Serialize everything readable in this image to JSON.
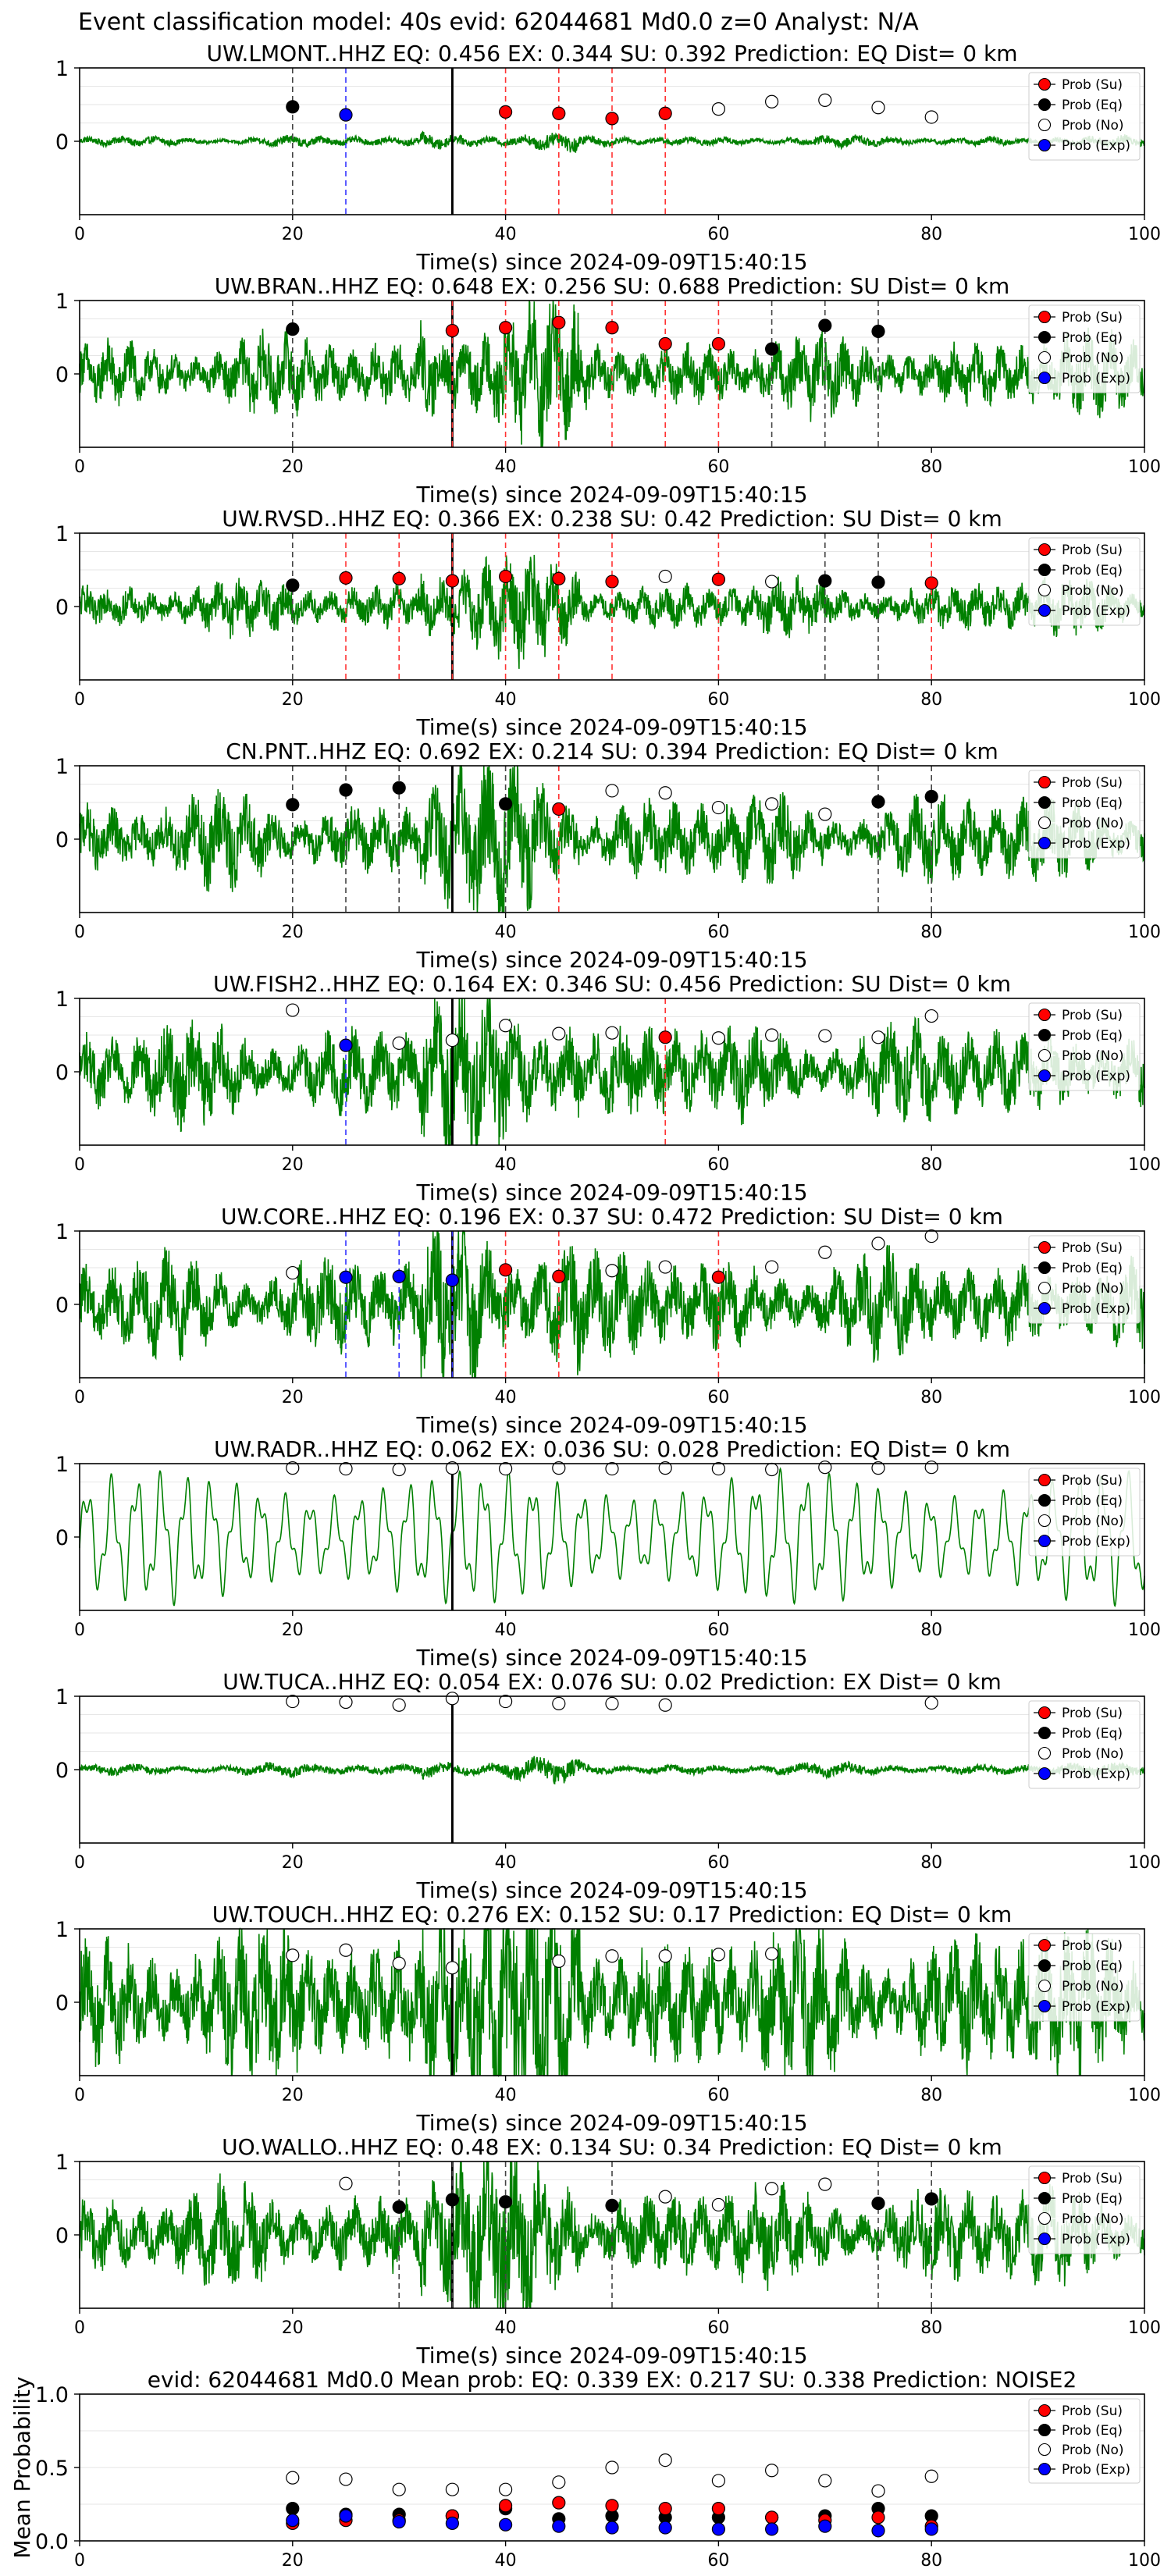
{
  "suptitle": "Event classification model: 40s evid: 62044681 Md0.0 z=0 Analyst: N/A",
  "colors": {
    "waveform": "#008000",
    "su": "#ff0000",
    "eq": "#000000",
    "exp": "#0000ff",
    "no_fill": "#ffffff",
    "marker_line": "#000000"
  },
  "legend": [
    {
      "key": "su",
      "label": "Prob (Su)"
    },
    {
      "key": "eq",
      "label": "Prob (Eq)"
    },
    {
      "key": "no",
      "label": "Prob (No)"
    },
    {
      "key": "exp",
      "label": "Prob (Exp)"
    }
  ],
  "chart_data": [
    {
      "type": "scatter",
      "station": "UW.LMONT..HHZ",
      "title": "UW.LMONT..HHZ   EQ: 0.456  EX: 0.344  SU: 0.392   Prediction: EQ    Dist= 0 km",
      "xlabel": "Time(s) since 2024-09-09T15:40:15",
      "xlim": [
        0,
        100
      ],
      "ylim": [
        -1,
        1
      ],
      "xticks": [
        "0",
        "20",
        "40",
        "60",
        "80",
        "100"
      ],
      "yticks": [
        "0",
        "1"
      ],
      "origin_time": 35,
      "waveform": {
        "amp": 0.05,
        "freq": 40
      },
      "points": [
        {
          "t": 20,
          "p": 0.47,
          "cls": "eq"
        },
        {
          "t": 25,
          "p": 0.36,
          "cls": "exp"
        },
        {
          "t": 40,
          "p": 0.4,
          "cls": "su"
        },
        {
          "t": 45,
          "p": 0.38,
          "cls": "su"
        },
        {
          "t": 50,
          "p": 0.31,
          "cls": "su"
        },
        {
          "t": 55,
          "p": 0.38,
          "cls": "su"
        },
        {
          "t": 60,
          "p": 0.44,
          "cls": "no"
        },
        {
          "t": 65,
          "p": 0.54,
          "cls": "no"
        },
        {
          "t": 70,
          "p": 0.56,
          "cls": "no"
        },
        {
          "t": 75,
          "p": 0.46,
          "cls": "no"
        },
        {
          "t": 80,
          "p": 0.33,
          "cls": "no"
        }
      ]
    },
    {
      "type": "scatter",
      "station": "UW.BRAN..HHZ",
      "title": "UW.BRAN..HHZ   EQ: 0.648  EX: 0.256  SU: 0.688   Prediction: SU    Dist= 0 km",
      "xlabel": "Time(s) since 2024-09-09T15:40:15",
      "xlim": [
        0,
        100
      ],
      "ylim": [
        -1,
        1
      ],
      "xticks": [
        "0",
        "20",
        "40",
        "60",
        "80",
        "100"
      ],
      "yticks": [
        "0",
        "1"
      ],
      "origin_time": 35,
      "waveform": {
        "amp": 0.35,
        "freq": 60
      },
      "points": [
        {
          "t": 20,
          "p": 0.61,
          "cls": "eq"
        },
        {
          "t": 35,
          "p": 0.59,
          "cls": "su"
        },
        {
          "t": 40,
          "p": 0.63,
          "cls": "su"
        },
        {
          "t": 45,
          "p": 0.7,
          "cls": "su"
        },
        {
          "t": 50,
          "p": 0.63,
          "cls": "su"
        },
        {
          "t": 55,
          "p": 0.41,
          "cls": "su"
        },
        {
          "t": 60,
          "p": 0.41,
          "cls": "su"
        },
        {
          "t": 65,
          "p": 0.34,
          "cls": "eq"
        },
        {
          "t": 70,
          "p": 0.66,
          "cls": "eq"
        },
        {
          "t": 75,
          "p": 0.58,
          "cls": "eq"
        }
      ]
    },
    {
      "type": "scatter",
      "station": "UW.RVSD..HHZ",
      "title": "UW.RVSD..HHZ   EQ: 0.366  EX: 0.238  SU: 0.42   Prediction: SU    Dist= 0 km",
      "xlabel": "Time(s) since 2024-09-09T15:40:15",
      "xlim": [
        0,
        100
      ],
      "ylim": [
        -1,
        1
      ],
      "xticks": [
        "0",
        "20",
        "40",
        "60",
        "80",
        "100"
      ],
      "yticks": [
        "0",
        "1"
      ],
      "origin_time": 35,
      "waveform": {
        "amp": 0.25,
        "freq": 60
      },
      "points": [
        {
          "t": 20,
          "p": 0.29,
          "cls": "eq"
        },
        {
          "t": 25,
          "p": 0.39,
          "cls": "su"
        },
        {
          "t": 30,
          "p": 0.38,
          "cls": "su"
        },
        {
          "t": 35,
          "p": 0.35,
          "cls": "su"
        },
        {
          "t": 40,
          "p": 0.41,
          "cls": "su"
        },
        {
          "t": 45,
          "p": 0.38,
          "cls": "su"
        },
        {
          "t": 50,
          "p": 0.34,
          "cls": "su"
        },
        {
          "t": 55,
          "p": 0.41,
          "cls": "no"
        },
        {
          "t": 60,
          "p": 0.37,
          "cls": "su"
        },
        {
          "t": 65,
          "p": 0.34,
          "cls": "no"
        },
        {
          "t": 70,
          "p": 0.35,
          "cls": "eq"
        },
        {
          "t": 75,
          "p": 0.33,
          "cls": "eq"
        },
        {
          "t": 80,
          "p": 0.32,
          "cls": "su"
        }
      ]
    },
    {
      "type": "scatter",
      "station": "CN.PNT..HHZ",
      "title": "CN.PNT..HHZ   EQ: 0.692  EX: 0.214  SU: 0.394   Prediction: EQ    Dist= 0 km",
      "xlabel": "Time(s) since 2024-09-09T15:40:15",
      "xlim": [
        0,
        100
      ],
      "ylim": [
        -1,
        1
      ],
      "xticks": [
        "0",
        "20",
        "40",
        "60",
        "80",
        "100"
      ],
      "yticks": [
        "0",
        "1"
      ],
      "origin_time": 35,
      "waveform": {
        "amp": 0.4,
        "freq": 50
      },
      "points": [
        {
          "t": 20,
          "p": 0.47,
          "cls": "eq"
        },
        {
          "t": 25,
          "p": 0.67,
          "cls": "eq"
        },
        {
          "t": 30,
          "p": 0.7,
          "cls": "eq"
        },
        {
          "t": 40,
          "p": 0.48,
          "cls": "eq"
        },
        {
          "t": 45,
          "p": 0.41,
          "cls": "su"
        },
        {
          "t": 50,
          "p": 0.66,
          "cls": "no"
        },
        {
          "t": 55,
          "p": 0.63,
          "cls": "no"
        },
        {
          "t": 60,
          "p": 0.43,
          "cls": "no"
        },
        {
          "t": 65,
          "p": 0.48,
          "cls": "no"
        },
        {
          "t": 70,
          "p": 0.34,
          "cls": "no"
        },
        {
          "t": 75,
          "p": 0.51,
          "cls": "eq"
        },
        {
          "t": 80,
          "p": 0.58,
          "cls": "eq"
        }
      ]
    },
    {
      "type": "scatter",
      "station": "UW.FISH2..HHZ",
      "title": "UW.FISH2..HHZ   EQ: 0.164  EX: 0.346  SU: 0.456   Prediction: SU    Dist= 0 km",
      "xlabel": "Time(s) since 2024-09-09T15:40:15",
      "xlim": [
        0,
        100
      ],
      "ylim": [
        -1,
        1
      ],
      "xticks": [
        "0",
        "20",
        "40",
        "60",
        "80",
        "100"
      ],
      "yticks": [
        "0",
        "1"
      ],
      "origin_time": 35,
      "waveform": {
        "amp": 0.45,
        "freq": 50
      },
      "points": [
        {
          "t": 20,
          "p": 0.84,
          "cls": "no"
        },
        {
          "t": 25,
          "p": 0.36,
          "cls": "exp"
        },
        {
          "t": 30,
          "p": 0.39,
          "cls": "no"
        },
        {
          "t": 35,
          "p": 0.43,
          "cls": "no"
        },
        {
          "t": 40,
          "p": 0.63,
          "cls": "no"
        },
        {
          "t": 45,
          "p": 0.52,
          "cls": "no"
        },
        {
          "t": 50,
          "p": 0.53,
          "cls": "no"
        },
        {
          "t": 55,
          "p": 0.47,
          "cls": "su"
        },
        {
          "t": 60,
          "p": 0.46,
          "cls": "no"
        },
        {
          "t": 65,
          "p": 0.5,
          "cls": "no"
        },
        {
          "t": 70,
          "p": 0.49,
          "cls": "no"
        },
        {
          "t": 75,
          "p": 0.47,
          "cls": "no"
        },
        {
          "t": 80,
          "p": 0.76,
          "cls": "no"
        }
      ]
    },
    {
      "type": "scatter",
      "station": "UW.CORE..HHZ",
      "title": "UW.CORE..HHZ   EQ: 0.196  EX: 0.37  SU: 0.472   Prediction: SU    Dist= 0 km",
      "xlabel": "Time(s) since 2024-09-09T15:40:15",
      "xlim": [
        0,
        100
      ],
      "ylim": [
        -1,
        1
      ],
      "xticks": [
        "0",
        "20",
        "40",
        "60",
        "80",
        "100"
      ],
      "yticks": [
        "0",
        "1"
      ],
      "origin_time": 35,
      "waveform": {
        "amp": 0.45,
        "freq": 50
      },
      "points": [
        {
          "t": 20,
          "p": 0.43,
          "cls": "no"
        },
        {
          "t": 25,
          "p": 0.37,
          "cls": "exp"
        },
        {
          "t": 30,
          "p": 0.38,
          "cls": "exp"
        },
        {
          "t": 35,
          "p": 0.33,
          "cls": "exp"
        },
        {
          "t": 40,
          "p": 0.47,
          "cls": "su"
        },
        {
          "t": 45,
          "p": 0.38,
          "cls": "su"
        },
        {
          "t": 50,
          "p": 0.46,
          "cls": "no"
        },
        {
          "t": 55,
          "p": 0.51,
          "cls": "no"
        },
        {
          "t": 60,
          "p": 0.37,
          "cls": "su"
        },
        {
          "t": 65,
          "p": 0.51,
          "cls": "no"
        },
        {
          "t": 70,
          "p": 0.71,
          "cls": "no"
        },
        {
          "t": 75,
          "p": 0.83,
          "cls": "no"
        },
        {
          "t": 80,
          "p": 0.93,
          "cls": "no"
        }
      ]
    },
    {
      "type": "scatter",
      "station": "UW.RADR..HHZ",
      "title": "UW.RADR..HHZ   EQ: 0.062  EX: 0.036  SU: 0.028   Prediction: EQ    Dist= 0 km",
      "xlabel": "Time(s) since 2024-09-09T15:40:15",
      "xlim": [
        0,
        100
      ],
      "ylim": [
        -1,
        1
      ],
      "xticks": [
        "0",
        "20",
        "40",
        "60",
        "80",
        "100"
      ],
      "yticks": [
        "0",
        "1"
      ],
      "origin_time": 35,
      "waveform": {
        "amp": 0.9,
        "freq": 3
      },
      "points": [
        {
          "t": 20,
          "p": 0.94,
          "cls": "no"
        },
        {
          "t": 25,
          "p": 0.93,
          "cls": "no"
        },
        {
          "t": 30,
          "p": 0.92,
          "cls": "no"
        },
        {
          "t": 35,
          "p": 0.94,
          "cls": "no"
        },
        {
          "t": 40,
          "p": 0.93,
          "cls": "no"
        },
        {
          "t": 45,
          "p": 0.94,
          "cls": "no"
        },
        {
          "t": 50,
          "p": 0.93,
          "cls": "no"
        },
        {
          "t": 55,
          "p": 0.94,
          "cls": "no"
        },
        {
          "t": 60,
          "p": 0.93,
          "cls": "no"
        },
        {
          "t": 65,
          "p": 0.92,
          "cls": "no"
        },
        {
          "t": 70,
          "p": 0.95,
          "cls": "no"
        },
        {
          "t": 75,
          "p": 0.94,
          "cls": "no"
        },
        {
          "t": 80,
          "p": 0.95,
          "cls": "no"
        }
      ]
    },
    {
      "type": "scatter",
      "station": "UW.TUCA..HHZ",
      "title": "UW.TUCA..HHZ   EQ: 0.054  EX: 0.076  SU: 0.02   Prediction: EX    Dist= 0 km",
      "xlabel": "Time(s) since 2024-09-09T15:40:15",
      "xlim": [
        0,
        100
      ],
      "ylim": [
        -1,
        1
      ],
      "xticks": [
        "0",
        "20",
        "40",
        "60",
        "80",
        "100"
      ],
      "yticks": [
        "0",
        "1"
      ],
      "origin_time": 35,
      "waveform": {
        "amp": 0.06,
        "freq": 30
      },
      "points": [
        {
          "t": 20,
          "p": 0.93,
          "cls": "no"
        },
        {
          "t": 25,
          "p": 0.92,
          "cls": "no"
        },
        {
          "t": 30,
          "p": 0.88,
          "cls": "no"
        },
        {
          "t": 35,
          "p": 0.97,
          "cls": "no"
        },
        {
          "t": 40,
          "p": 0.93,
          "cls": "no"
        },
        {
          "t": 45,
          "p": 0.9,
          "cls": "no"
        },
        {
          "t": 50,
          "p": 0.9,
          "cls": "no"
        },
        {
          "t": 55,
          "p": 0.88,
          "cls": "no"
        },
        {
          "t": 80,
          "p": 0.91,
          "cls": "no"
        }
      ]
    },
    {
      "type": "scatter",
      "station": "UW.TOUCH..HHZ",
      "title": "UW.TOUCH..HHZ   EQ: 0.276  EX: 0.152  SU: 0.17   Prediction: EQ    Dist= 0 km",
      "xlabel": "Time(s) since 2024-09-09T15:40:15",
      "xlim": [
        0,
        100
      ],
      "ylim": [
        -1,
        1
      ],
      "xticks": [
        "0",
        "20",
        "40",
        "60",
        "80",
        "100"
      ],
      "yticks": [
        "0",
        "1"
      ],
      "origin_time": 35,
      "waveform": {
        "amp": 0.7,
        "freq": 60
      },
      "points": [
        {
          "t": 20,
          "p": 0.64,
          "cls": "no"
        },
        {
          "t": 25,
          "p": 0.71,
          "cls": "no"
        },
        {
          "t": 30,
          "p": 0.53,
          "cls": "no"
        },
        {
          "t": 35,
          "p": 0.47,
          "cls": "no"
        },
        {
          "t": 45,
          "p": 0.56,
          "cls": "no"
        },
        {
          "t": 50,
          "p": 0.63,
          "cls": "no"
        },
        {
          "t": 55,
          "p": 0.63,
          "cls": "no"
        },
        {
          "t": 60,
          "p": 0.65,
          "cls": "no"
        },
        {
          "t": 65,
          "p": 0.66,
          "cls": "no"
        }
      ]
    },
    {
      "type": "scatter",
      "station": "UO.WALLO..HHZ",
      "title": "UO.WALLO..HHZ   EQ: 0.48  EX: 0.134  SU: 0.34   Prediction: EQ    Dist= 0 km",
      "xlabel": "Time(s) since 2024-09-09T15:40:15",
      "xlim": [
        0,
        100
      ],
      "ylim": [
        -1,
        1
      ],
      "xticks": [
        "0",
        "20",
        "40",
        "60",
        "80",
        "100"
      ],
      "yticks": [
        "0",
        "1"
      ],
      "origin_time": 35,
      "waveform": {
        "amp": 0.45,
        "freq": 50
      },
      "points": [
        {
          "t": 25,
          "p": 0.7,
          "cls": "no"
        },
        {
          "t": 30,
          "p": 0.38,
          "cls": "eq"
        },
        {
          "t": 35,
          "p": 0.48,
          "cls": "eq"
        },
        {
          "t": 40,
          "p": 0.45,
          "cls": "eq"
        },
        {
          "t": 50,
          "p": 0.4,
          "cls": "eq"
        },
        {
          "t": 55,
          "p": 0.52,
          "cls": "no"
        },
        {
          "t": 60,
          "p": 0.41,
          "cls": "no"
        },
        {
          "t": 65,
          "p": 0.63,
          "cls": "no"
        },
        {
          "t": 70,
          "p": 0.69,
          "cls": "no"
        },
        {
          "t": 75,
          "p": 0.43,
          "cls": "eq"
        },
        {
          "t": 80,
          "p": 0.49,
          "cls": "eq"
        }
      ]
    },
    {
      "type": "scatter",
      "title": "evid: 62044681   Md0.0    Mean prob:    EQ: 0.339   EX: 0.217   SU: 0.338    Prediction: NOISE2",
      "ylabel": "Mean Probability",
      "xlim": [
        0,
        100
      ],
      "ylim": [
        0,
        1
      ],
      "xticks": [
        "0",
        "20",
        "40",
        "60",
        "80",
        "100"
      ],
      "yticks": [
        "0.0",
        "0.5",
        "1.0"
      ],
      "x": [
        20,
        25,
        30,
        35,
        40,
        45,
        50,
        55,
        60,
        65,
        70,
        75,
        80
      ],
      "series": [
        {
          "name": "Prob (No)",
          "cls": "no",
          "values": [
            0.43,
            0.42,
            0.35,
            0.35,
            0.35,
            0.4,
            0.5,
            0.55,
            0.41,
            0.48,
            0.41,
            0.34,
            0.44
          ]
        },
        {
          "name": "Prob (Eq)",
          "cls": "eq",
          "values": [
            0.22,
            0.18,
            0.18,
            0.17,
            0.22,
            0.15,
            0.17,
            0.16,
            0.16,
            0.16,
            0.17,
            0.22,
            0.17
          ]
        },
        {
          "name": "Prob (Su)",
          "cls": "su",
          "values": [
            0.12,
            0.14,
            0.14,
            0.17,
            0.24,
            0.26,
            0.24,
            0.22,
            0.22,
            0.16,
            0.14,
            0.16,
            0.1
          ]
        },
        {
          "name": "Prob (Exp)",
          "cls": "exp",
          "values": [
            0.14,
            0.17,
            0.13,
            0.12,
            0.11,
            0.1,
            0.09,
            0.09,
            0.08,
            0.08,
            0.1,
            0.07,
            0.08
          ]
        }
      ]
    }
  ]
}
